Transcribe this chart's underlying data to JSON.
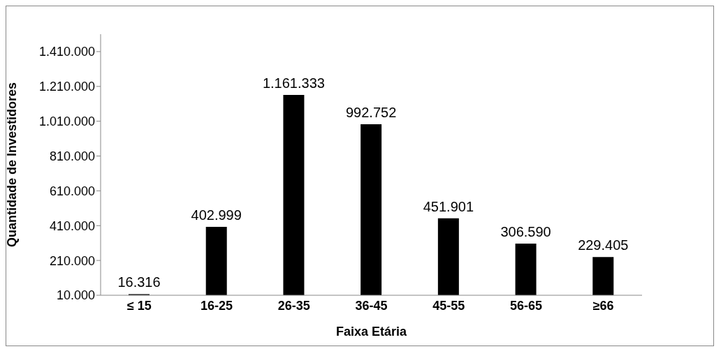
{
  "chart_data": {
    "type": "bar",
    "xlabel": "Faixa Etária",
    "ylabel": "Quantidade de Investidores",
    "categories": [
      "≤ 15",
      "16-25",
      "26-35",
      "36-45",
      "45-55",
      "56-65",
      "≥66"
    ],
    "values": [
      16316,
      402999,
      1161333,
      992752,
      451901,
      306590,
      229405
    ],
    "value_labels": [
      "16.316",
      "402.999",
      "1.161.333",
      "992.752",
      "451.901",
      "306.590",
      "229.405"
    ],
    "color": "#000000",
    "ylim": [
      10000,
      1510000
    ],
    "yticks": [
      {
        "value": 10000,
        "label": "10.000"
      },
      {
        "value": 210000,
        "label": "210.000"
      },
      {
        "value": 410000,
        "label": "410.000"
      },
      {
        "value": 610000,
        "label": "610.000"
      },
      {
        "value": 810000,
        "label": "810.000"
      },
      {
        "value": 1010000,
        "label": "1.010.000"
      },
      {
        "value": 1210000,
        "label": "1.210.000"
      },
      {
        "value": 1410000,
        "label": "1.410.000"
      }
    ],
    "grid": false,
    "legend": false
  }
}
